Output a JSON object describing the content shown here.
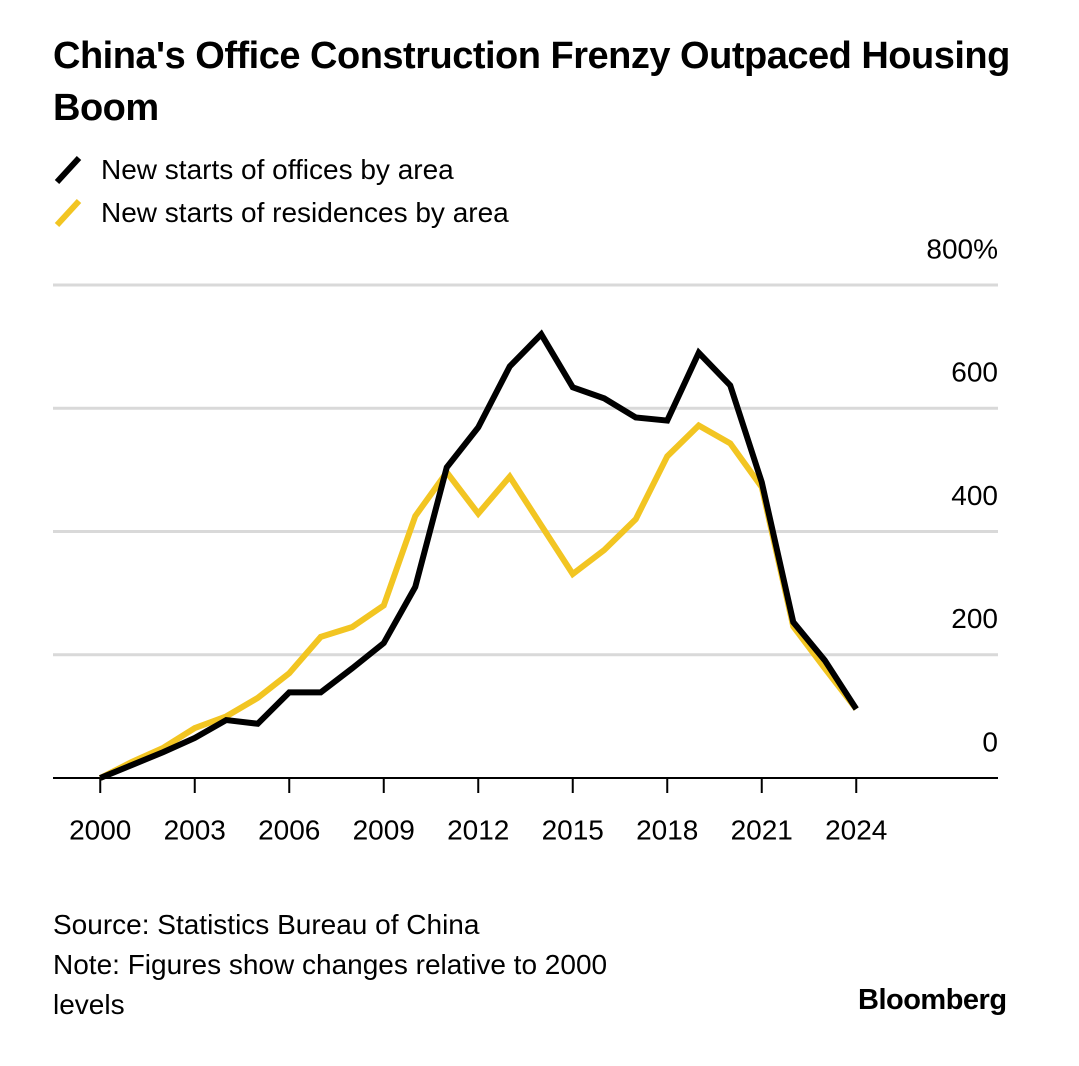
{
  "chart_data": {
    "type": "line",
    "title": "China's Office Construction Frenzy Outpaced Housing Boom",
    "x": [
      2000,
      2001,
      2002,
      2003,
      2004,
      2005,
      2006,
      2007,
      2008,
      2009,
      2010,
      2011,
      2012,
      2013,
      2014,
      2015,
      2016,
      2017,
      2018,
      2019,
      2020,
      2021,
      2022,
      2023,
      2024
    ],
    "series": [
      {
        "name": "New starts of offices by area",
        "color": "#000000",
        "values": [
          0,
          21,
          42,
          65,
          94,
          88,
          139,
          139,
          178,
          219,
          310,
          504,
          569,
          668,
          720,
          634,
          616,
          585,
          580,
          690,
          637,
          480,
          253,
          191,
          112
        ]
      },
      {
        "name": "New starts of residences by area",
        "color": "#f2c522",
        "values": [
          0,
          26,
          49,
          81,
          100,
          130,
          170,
          229,
          245,
          280,
          425,
          496,
          429,
          489,
          410,
          331,
          370,
          420,
          522,
          572,
          543,
          472,
          246,
          178,
          112
        ]
      }
    ],
    "xlim": [
      1998.5,
      2028.5
    ],
    "xticks": [
      2000,
      2003,
      2006,
      2009,
      2012,
      2015,
      2018,
      2021,
      2024
    ],
    "ylim": [
      0,
      800
    ],
    "yticks": [
      0,
      200,
      400,
      600,
      {
        "value": 800,
        "label": "800%"
      }
    ],
    "grid": true,
    "source": "Source: Statistics Bureau of China",
    "note": "Note: Figures show changes relative to 2000 levels",
    "credit": "Bloomberg"
  }
}
